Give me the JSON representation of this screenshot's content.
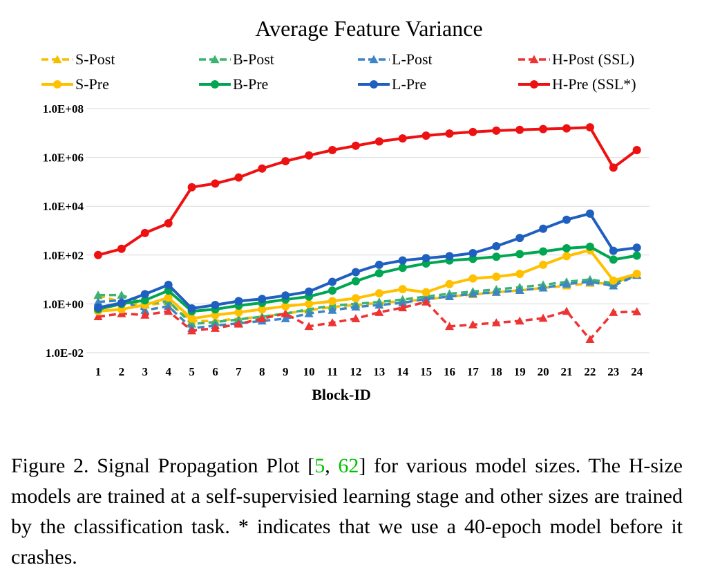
{
  "chart_data": {
    "type": "line",
    "title": "Average Feature Variance",
    "xlabel": "Block-ID",
    "ylabel": "",
    "yscale": "log",
    "ylim": [
      0.01,
      100000000
    ],
    "yticks": [
      "1.0E-02",
      "1.0E+00",
      "1.0E+02",
      "1.0E+04",
      "1.0E+06",
      "1.0E+08"
    ],
    "ytick_values": [
      0.01,
      1,
      100,
      10000,
      1000000,
      100000000
    ],
    "grid": "horizontal",
    "legend_position": "top",
    "x": [
      1,
      2,
      3,
      4,
      5,
      6,
      7,
      8,
      9,
      10,
      11,
      12,
      13,
      14,
      15,
      16,
      17,
      18,
      19,
      20,
      21,
      22,
      23,
      24
    ],
    "series": [
      {
        "name": "S-Post",
        "color": "#f5bf00",
        "dashed": true,
        "marker": "triangle",
        "values": [
          2.2,
          1.2,
          0.9,
          1.1,
          0.2,
          0.2,
          0.25,
          0.3,
          0.4,
          0.55,
          0.75,
          0.9,
          1.1,
          1.3,
          1.5,
          2.0,
          2.4,
          3.0,
          3.6,
          4.5,
          5.5,
          7.0,
          7.0,
          15
        ]
      },
      {
        "name": "B-Post",
        "color": "#3cb371",
        "dashed": true,
        "marker": "triangle",
        "values": [
          2.3,
          2.3,
          1.0,
          1.3,
          0.15,
          0.18,
          0.23,
          0.3,
          0.4,
          0.6,
          0.85,
          1.0,
          1.2,
          1.5,
          2.0,
          2.6,
          3.2,
          3.9,
          4.8,
          6.0,
          8.0,
          10.0,
          7.0,
          15
        ]
      },
      {
        "name": "L-Post",
        "color": "#3d85c6",
        "dashed": true,
        "marker": "triangle",
        "values": [
          1.2,
          1.4,
          0.55,
          0.8,
          0.1,
          0.13,
          0.16,
          0.2,
          0.25,
          0.4,
          0.55,
          0.75,
          0.9,
          1.1,
          1.6,
          2.0,
          2.6,
          3.0,
          3.6,
          4.5,
          6.5,
          8.0,
          5.5,
          15
        ]
      },
      {
        "name": "H-Post (SSL)",
        "color": "#ee3333",
        "dashed": true,
        "marker": "triangle",
        "values": [
          0.3,
          0.4,
          0.35,
          0.5,
          0.08,
          0.1,
          0.15,
          0.25,
          0.4,
          0.12,
          0.17,
          0.25,
          0.45,
          0.7,
          1.2,
          0.12,
          0.14,
          0.17,
          0.2,
          0.26,
          0.5,
          0.035,
          0.45,
          0.48
        ]
      },
      {
        "name": "S-Pre",
        "color": "#ffc000",
        "dashed": false,
        "marker": "circle",
        "values": [
          0.5,
          0.6,
          0.9,
          1.8,
          0.25,
          0.35,
          0.45,
          0.6,
          0.8,
          1.0,
          1.3,
          1.7,
          2.7,
          4.0,
          3.0,
          6.5,
          11,
          13,
          17,
          40,
          90,
          160,
          9,
          17
        ]
      },
      {
        "name": "B-Pre",
        "color": "#00a651",
        "dashed": false,
        "marker": "circle",
        "values": [
          0.6,
          1.0,
          1.4,
          3.5,
          0.5,
          0.6,
          0.85,
          1.1,
          1.5,
          2.0,
          3.5,
          8.5,
          18,
          30,
          45,
          60,
          70,
          85,
          110,
          140,
          190,
          220,
          65,
          95
        ]
      },
      {
        "name": "L-Pre",
        "color": "#1f5fbf",
        "dashed": false,
        "marker": "circle",
        "values": [
          0.7,
          1.1,
          2.5,
          6.0,
          0.65,
          0.9,
          1.3,
          1.6,
          2.2,
          3.2,
          8.0,
          20,
          40,
          60,
          75,
          90,
          120,
          230,
          500,
          1200,
          2800,
          5000,
          150,
          200
        ]
      },
      {
        "name": "H-Pre (SSL*)",
        "color": "#ee1111",
        "dashed": false,
        "marker": "circle",
        "values": [
          100,
          180,
          800,
          2000,
          60000,
          85000,
          150000,
          350000,
          700000,
          1200000,
          2000000,
          3000000,
          4500000,
          6000000,
          7800000,
          9500000,
          11000000,
          12500000,
          13500000,
          14500000,
          15500000,
          17000000,
          380000,
          2000000
        ]
      }
    ]
  },
  "caption": {
    "prefix": "Figure 2. Signal Propagation Plot [",
    "cite1": "5",
    "sep": ", ",
    "cite2": "62",
    "suffix": "] for various model sizes. The H-size models are trained at a self-supervisied learning stage and other sizes are trained by the classification task.  * indicates that we use a 40-epoch model before it crashes."
  }
}
